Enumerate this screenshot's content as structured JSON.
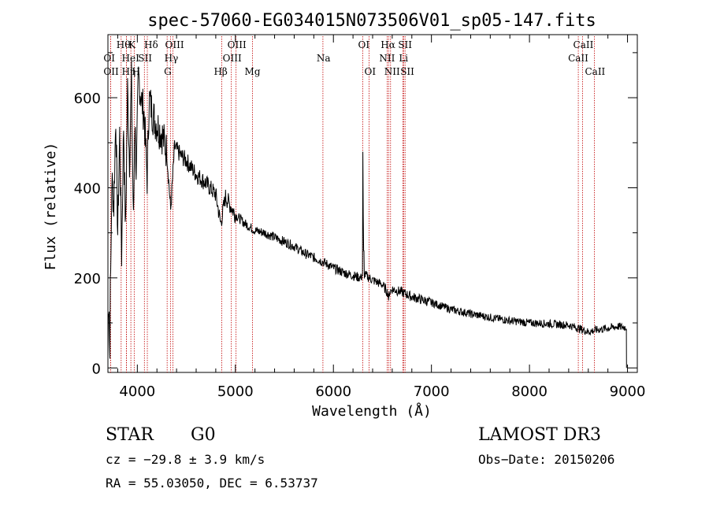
{
  "chart_data": {
    "type": "line",
    "title": "spec-57060-EG034015N073506V01_sp05-147.fits",
    "xlabel": "Wavelength (Å)",
    "ylabel": "Flux (relative)",
    "xlim": [
      3700,
      9100
    ],
    "ylim": [
      -10,
      740
    ],
    "xticks": [
      4000,
      5000,
      6000,
      7000,
      8000,
      9000
    ],
    "yticks": [
      0,
      200,
      400,
      600
    ],
    "series": [
      {
        "name": "spectrum",
        "anchors": [
          [
            3700,
            20
          ],
          [
            3710,
            180
          ],
          [
            3720,
            20
          ],
          [
            3740,
            420
          ],
          [
            3760,
            360
          ],
          [
            3780,
            560
          ],
          [
            3800,
            300
          ],
          [
            3820,
            520
          ],
          [
            3840,
            250
          ],
          [
            3860,
            540
          ],
          [
            3880,
            300
          ],
          [
            3900,
            620
          ],
          [
            3920,
            460
          ],
          [
            3940,
            640
          ],
          [
            3960,
            320
          ],
          [
            3975,
            560
          ],
          [
            3990,
            420
          ],
          [
            4010,
            650
          ],
          [
            4040,
            600
          ],
          [
            4070,
            560
          ],
          [
            4100,
            420
          ],
          [
            4120,
            600
          ],
          [
            4160,
            560
          ],
          [
            4200,
            540
          ],
          [
            4250,
            520
          ],
          [
            4300,
            480
          ],
          [
            4340,
            350
          ],
          [
            4380,
            490
          ],
          [
            4450,
            470
          ],
          [
            4500,
            460
          ],
          [
            4600,
            430
          ],
          [
            4700,
            410
          ],
          [
            4800,
            385
          ],
          [
            4850,
            320
          ],
          [
            4900,
            380
          ],
          [
            5000,
            340
          ],
          [
            5100,
            320
          ],
          [
            5200,
            305
          ],
          [
            5300,
            300
          ],
          [
            5400,
            290
          ],
          [
            5500,
            280
          ],
          [
            5600,
            270
          ],
          [
            5700,
            255
          ],
          [
            5800,
            245
          ],
          [
            5900,
            235
          ],
          [
            6000,
            222
          ],
          [
            6100,
            212
          ],
          [
            6200,
            205
          ],
          [
            6280,
            200
          ],
          [
            6300,
            210
          ],
          [
            6400,
            195
          ],
          [
            6500,
            185
          ],
          [
            6560,
            165
          ],
          [
            6600,
            175
          ],
          [
            6700,
            168
          ],
          [
            6800,
            158
          ],
          [
            7000,
            145
          ],
          [
            7200,
            130
          ],
          [
            7400,
            120
          ],
          [
            7600,
            112
          ],
          [
            7800,
            105
          ],
          [
            8000,
            100
          ],
          [
            8200,
            98
          ],
          [
            8400,
            95
          ],
          [
            8500,
            88
          ],
          [
            8600,
            80
          ],
          [
            8700,
            85
          ],
          [
            8800,
            88
          ],
          [
            8900,
            92
          ],
          [
            8990,
            90
          ]
        ],
        "spikes": [
          [
            6300,
            480
          ],
          [
            6305,
            340
          ],
          [
            6310,
            260
          ],
          [
            6564,
            150
          ],
          [
            6567,
            170
          ],
          [
            3705,
            120
          ],
          [
            3715,
            60
          ],
          [
            3725,
            200
          ]
        ]
      }
    ],
    "lines": [
      {
        "name": "OII",
        "wl": 3727,
        "row": 2,
        "label": "OII",
        "lx": -9
      },
      {
        "name": "H9",
        "wl": 3835,
        "row": 0,
        "label": "Hθ",
        "lx": -6
      },
      {
        "name": "OII-b",
        "wl": 3727,
        "row": 1,
        "label": "OI",
        "lx": -9
      },
      {
        "name": "Hη",
        "wl": 3889,
        "row": 2,
        "label": "Hη",
        "lx": -6
      },
      {
        "name": "K",
        "wl": 3934,
        "row": 0,
        "label": "K",
        "lx": -3
      },
      {
        "name": "HeI",
        "wl": 3889,
        "row": 1,
        "label": "HeI",
        "lx": -6
      },
      {
        "name": "H",
        "wl": 3968,
        "row": 2,
        "label": "H",
        "lx": -3
      },
      {
        "name": "SII",
        "wl": 4072,
        "row": 1,
        "label": "SII",
        "lx": -8
      },
      {
        "name": "Hδ",
        "wl": 4102,
        "row": 0,
        "label": "Hδ",
        "lx": -4
      },
      {
        "name": "OIII-a",
        "wl": 4363,
        "row": 0,
        "label": "OIII",
        "lx": -10
      },
      {
        "name": "Hγ",
        "wl": 4340,
        "row": 1,
        "label": "Hγ",
        "lx": -8
      },
      {
        "name": "G",
        "wl": 4304,
        "row": 2,
        "label": "G",
        "lx": -4
      },
      {
        "name": "Hβ",
        "wl": 4861,
        "row": 2,
        "label": "Hβ",
        "lx": -10
      },
      {
        "name": "OIII-b",
        "wl": 4959,
        "row": 1,
        "label": "OIII",
        "lx": -11
      },
      {
        "name": "OIII-c",
        "wl": 5007,
        "row": 0,
        "label": "OIII",
        "lx": -11
      },
      {
        "name": "Mg",
        "wl": 5175,
        "row": 2,
        "label": "Mg",
        "lx": -10
      },
      {
        "name": "Na",
        "wl": 5893,
        "row": 1,
        "label": "Na",
        "lx": -8
      },
      {
        "name": "OI-a",
        "wl": 6300,
        "row": 0,
        "label": "OI",
        "lx": -6
      },
      {
        "name": "OI-b",
        "wl": 6364,
        "row": 2,
        "label": "OI",
        "lx": -6
      },
      {
        "name": "Hα",
        "wl": 6563,
        "row": 0,
        "label": "Hα",
        "lx": -10
      },
      {
        "name": "NII-a",
        "wl": 6548,
        "row": 1,
        "label": "NII",
        "lx": -10
      },
      {
        "name": "NII-b",
        "wl": 6583,
        "row": 2,
        "label": "NII",
        "lx": -8
      },
      {
        "name": "SII-a",
        "wl": 6716,
        "row": 0,
        "label": "SII",
        "lx": -7
      },
      {
        "name": "Li",
        "wl": 6708,
        "row": 1,
        "label": "Li",
        "lx": -5
      },
      {
        "name": "SII-b",
        "wl": 6731,
        "row": 2,
        "label": "SII",
        "lx": -6
      },
      {
        "name": "CaII-a",
        "wl": 8498,
        "row": 1,
        "label": "CaII",
        "lx": -13
      },
      {
        "name": "CaII-b",
        "wl": 8542,
        "row": 0,
        "label": "CaII",
        "lx": -12
      },
      {
        "name": "CaII-c",
        "wl": 8662,
        "row": 2,
        "label": "CaII",
        "lx": -12
      }
    ]
  },
  "footer": {
    "class": "STAR",
    "subclass": "G0",
    "survey": "LAMOST DR3",
    "cz": "cz = −29.8 ± 3.9 km/s",
    "obs_date": "Obs−Date: 20150206",
    "radec": "RA =  55.03050, DEC =    6.53737"
  }
}
